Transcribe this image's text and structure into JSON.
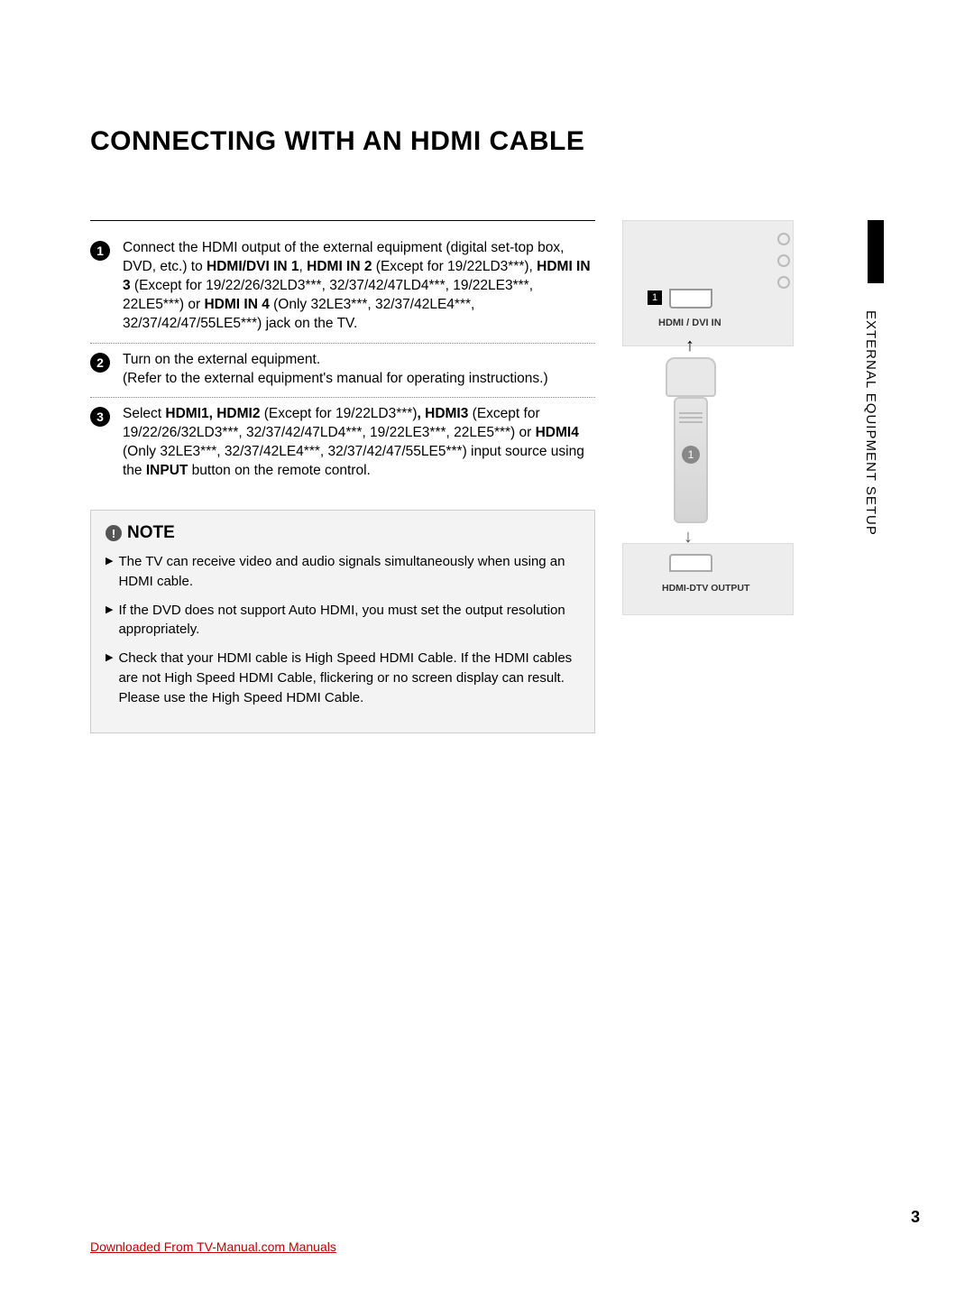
{
  "title": "CONNECTING WITH AN HDMI CABLE",
  "side_tab": "EXTERNAL EQUIPMENT SETUP",
  "steps": [
    {
      "num": "1",
      "html": "Connect the HDMI output of the external equipment (digital set-top box, DVD, etc.) to <b>HDMI/DVI IN 1</b>, <b>HDMI IN 2</b> (Except for 19/22LD3***), <b>HDMI IN 3</b> (Except for 19/22/26/32LD3***, 32/37/42/47LD4***, 19/22LE3***, 22LE5***) or <b>HDMI IN 4</b> (Only 32LE3***, 32/37/42LE4***, 32/37/42/47/55LE5***) jack on the TV."
    },
    {
      "num": "2",
      "html": "Turn on the external equipment.<br>(Refer to the external equipment's manual for operating instructions.)"
    },
    {
      "num": "3",
      "html": "Select <b>HDMI1, HDMI2</b> (Except for 19/22LD3***)<b>, HDMI3</b> (Except for 19/22/26/32LD3***, 32/37/42/47LD4***, 19/22LE3***, 22LE5***) or <b>HDMI4</b> (Only 32LE3***, 32/37/42LE4***, 32/37/42/47/55LE5***) input source using the <b>INPUT</b> button on the remote control."
    }
  ],
  "note": {
    "heading": "NOTE",
    "items": [
      "The TV can receive video and audio signals simultaneously when using an HDMI cable.",
      "If the DVD does not support Auto HDMI, you must set the output resolution appropriately.",
      "Check that your HDMI cable is High Speed HDMI Cable. If the HDMI cables are not High Speed HDMI Cable, flickering or no screen display can result. Please use the High Speed HDMI Cable."
    ]
  },
  "diagram": {
    "port_num": "1",
    "port_label": "HDMI / DVI IN",
    "cable_badge": "1",
    "device_label": "HDMI-DTV OUTPUT"
  },
  "page_num": "3",
  "download_link": "Downloaded From TV-Manual.com Manuals"
}
